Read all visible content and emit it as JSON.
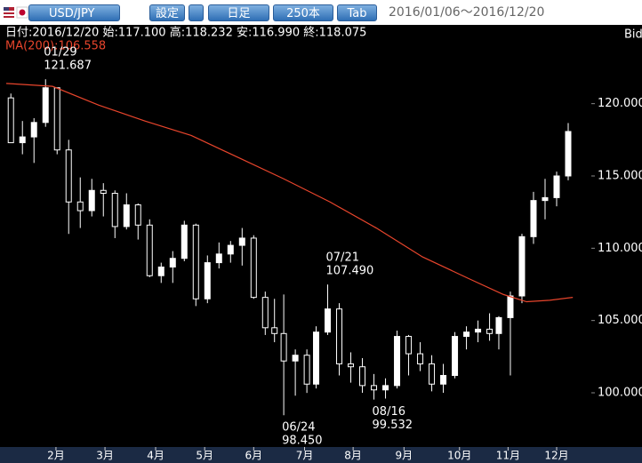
{
  "toolbar": {
    "pair": "USD/JPY",
    "settings": "設定",
    "period": "日足",
    "count": "250本",
    "tab": "Tab",
    "range": "2016/01/06～2016/12/20"
  },
  "chart_data": {
    "type": "ohlc",
    "info": "日付:2016/12/20 始:117.100 高:118.232 安:116.990 終:118.075",
    "ma_label": "MA(200):106.558",
    "side": "Bid",
    "ylim": [
      96.25,
      125.45
    ],
    "xlim": [
      -2.7,
      253
    ],
    "yticks": [
      {
        "value": 100,
        "label": "100.000"
      },
      {
        "value": 105,
        "label": "105.000"
      },
      {
        "value": 110,
        "label": "110.000"
      },
      {
        "value": 115,
        "label": "115.000"
      },
      {
        "value": 120,
        "label": "120.000"
      }
    ],
    "xticks": [
      {
        "value": 21.5,
        "label": "2月"
      },
      {
        "value": 42.7,
        "label": "3月"
      },
      {
        "value": 64.6,
        "label": "4月"
      },
      {
        "value": 85.8,
        "label": "5月"
      },
      {
        "value": 107,
        "label": "6月"
      },
      {
        "value": 129,
        "label": "7月"
      },
      {
        "value": 150,
        "label": "8月"
      },
      {
        "value": 172,
        "label": "9月"
      },
      {
        "value": 196,
        "label": "10月"
      },
      {
        "value": 217,
        "label": "11月"
      },
      {
        "value": 238,
        "label": "12月"
      }
    ],
    "candle_color": "#ffffff",
    "ma_color": "#e8452c",
    "candles": [
      {
        "x": 2,
        "o": 120.4,
        "h": 120.7,
        "l": 117.3,
        "c": 117.3
      },
      {
        "x": 7,
        "o": 117.3,
        "h": 118.8,
        "l": 116.5,
        "c": 117.7
      },
      {
        "x": 12,
        "o": 117.7,
        "h": 119.0,
        "l": 115.9,
        "c": 118.7
      },
      {
        "x": 17,
        "o": 118.7,
        "h": 121.687,
        "l": 118.4,
        "c": 121.1
      },
      {
        "x": 22,
        "o": 121.1,
        "h": 121.0,
        "l": 116.5,
        "c": 116.8
      },
      {
        "x": 27,
        "o": 116.8,
        "h": 117.5,
        "l": 110.99,
        "c": 113.2
      },
      {
        "x": 32,
        "o": 113.2,
        "h": 114.9,
        "l": 111.4,
        "c": 112.6
      },
      {
        "x": 37,
        "o": 112.6,
        "h": 114.8,
        "l": 112.2,
        "c": 114.0
      },
      {
        "x": 42,
        "o": 114.0,
        "h": 114.5,
        "l": 112.2,
        "c": 113.8
      },
      {
        "x": 47,
        "o": 113.8,
        "h": 114.0,
        "l": 110.7,
        "c": 111.5
      },
      {
        "x": 52,
        "o": 111.5,
        "h": 113.8,
        "l": 111.3,
        "c": 113.0
      },
      {
        "x": 57,
        "o": 113.0,
        "h": 113.1,
        "l": 110.6,
        "c": 111.6
      },
      {
        "x": 62,
        "o": 111.6,
        "h": 112.0,
        "l": 108.0,
        "c": 108.1
      },
      {
        "x": 67,
        "o": 108.1,
        "h": 109.0,
        "l": 107.6,
        "c": 108.7
      },
      {
        "x": 72,
        "o": 108.7,
        "h": 109.8,
        "l": 107.6,
        "c": 109.3
      },
      {
        "x": 77,
        "o": 109.3,
        "h": 111.9,
        "l": 109.1,
        "c": 111.6
      },
      {
        "x": 82,
        "o": 111.6,
        "h": 111.7,
        "l": 106.0,
        "c": 106.5
      },
      {
        "x": 87,
        "o": 106.5,
        "h": 109.5,
        "l": 106.2,
        "c": 109.0
      },
      {
        "x": 92,
        "o": 109.0,
        "h": 110.4,
        "l": 108.6,
        "c": 109.6
      },
      {
        "x": 97,
        "o": 109.6,
        "h": 110.5,
        "l": 109.0,
        "c": 110.2
      },
      {
        "x": 102,
        "o": 110.2,
        "h": 111.4,
        "l": 108.8,
        "c": 110.7
      },
      {
        "x": 107,
        "o": 110.7,
        "h": 110.9,
        "l": 106.5,
        "c": 106.6
      },
      {
        "x": 112,
        "o": 106.6,
        "h": 107.0,
        "l": 104.0,
        "c": 104.5
      },
      {
        "x": 116,
        "o": 104.5,
        "h": 106.5,
        "l": 103.5,
        "c": 104.1
      },
      {
        "x": 120,
        "o": 104.1,
        "h": 106.8,
        "l": 98.45,
        "c": 102.2
      },
      {
        "x": 125,
        "o": 102.2,
        "h": 103.0,
        "l": 99.8,
        "c": 102.6
      },
      {
        "x": 130,
        "o": 102.6,
        "h": 103.0,
        "l": 99.99,
        "c": 100.6
      },
      {
        "x": 134,
        "o": 100.6,
        "h": 104.6,
        "l": 100.3,
        "c": 104.2
      },
      {
        "x": 139,
        "o": 104.2,
        "h": 107.49,
        "l": 104.0,
        "c": 105.8
      },
      {
        "x": 144,
        "o": 105.8,
        "h": 106.2,
        "l": 101.2,
        "c": 102.0
      },
      {
        "x": 149,
        "o": 102.0,
        "h": 102.8,
        "l": 100.7,
        "c": 101.8
      },
      {
        "x": 154,
        "o": 101.8,
        "h": 102.4,
        "l": 100.0,
        "c": 100.5
      },
      {
        "x": 159,
        "o": 100.5,
        "h": 101.3,
        "l": 99.532,
        "c": 100.2
      },
      {
        "x": 164,
        "o": 100.2,
        "h": 101.0,
        "l": 99.6,
        "c": 100.5
      },
      {
        "x": 169,
        "o": 100.5,
        "h": 104.3,
        "l": 100.3,
        "c": 103.9
      },
      {
        "x": 174,
        "o": 103.9,
        "h": 104.0,
        "l": 101.2,
        "c": 102.7
      },
      {
        "x": 179,
        "o": 102.7,
        "h": 103.5,
        "l": 101.5,
        "c": 102.0
      },
      {
        "x": 184,
        "o": 102.0,
        "h": 102.6,
        "l": 100.1,
        "c": 100.6
      },
      {
        "x": 189,
        "o": 100.6,
        "h": 102.0,
        "l": 100.0,
        "c": 101.2
      },
      {
        "x": 194,
        "o": 101.2,
        "h": 104.2,
        "l": 101.0,
        "c": 103.9
      },
      {
        "x": 199,
        "o": 103.9,
        "h": 104.6,
        "l": 103.0,
        "c": 104.2
      },
      {
        "x": 204,
        "o": 104.2,
        "h": 105.0,
        "l": 103.5,
        "c": 104.4
      },
      {
        "x": 209,
        "o": 104.4,
        "h": 105.5,
        "l": 103.6,
        "c": 104.1
      },
      {
        "x": 213,
        "o": 104.1,
        "h": 105.3,
        "l": 103.0,
        "c": 105.2
      },
      {
        "x": 218,
        "o": 105.2,
        "h": 107.0,
        "l": 101.2,
        "c": 106.7
      },
      {
        "x": 223,
        "o": 106.7,
        "h": 111.0,
        "l": 106.2,
        "c": 110.8
      },
      {
        "x": 228,
        "o": 110.8,
        "h": 113.9,
        "l": 110.3,
        "c": 113.3
      },
      {
        "x": 233,
        "o": 113.3,
        "h": 114.8,
        "l": 112.0,
        "c": 113.5
      },
      {
        "x": 238,
        "o": 113.5,
        "h": 115.3,
        "l": 112.9,
        "c": 115.0
      },
      {
        "x": 243,
        "o": 115.0,
        "h": 118.66,
        "l": 114.7,
        "c": 118.075
      }
    ],
    "ma": {
      "x": [
        0,
        20,
        40,
        60,
        80,
        100,
        120,
        140,
        160,
        180,
        200,
        215,
        225,
        235,
        245
      ],
      "values": [
        121.4,
        121.2,
        119.9,
        118.8,
        117.8,
        116.3,
        114.8,
        113.2,
        111.4,
        109.4,
        107.9,
        106.8,
        106.3,
        106.4,
        106.6
      ]
    },
    "annotations": [
      {
        "x": 17,
        "v": 121.687,
        "date": "01/29",
        "price": "121.687",
        "pos": "above"
      },
      {
        "x": 120,
        "v": 98.45,
        "date": "06/24",
        "price": "98.450",
        "pos": "below"
      },
      {
        "x": 139,
        "v": 107.49,
        "date": "07/21",
        "price": "107.490",
        "pos": "above"
      },
      {
        "x": 159,
        "v": 99.532,
        "date": "08/16",
        "price": "99.532",
        "pos": "below"
      }
    ]
  }
}
